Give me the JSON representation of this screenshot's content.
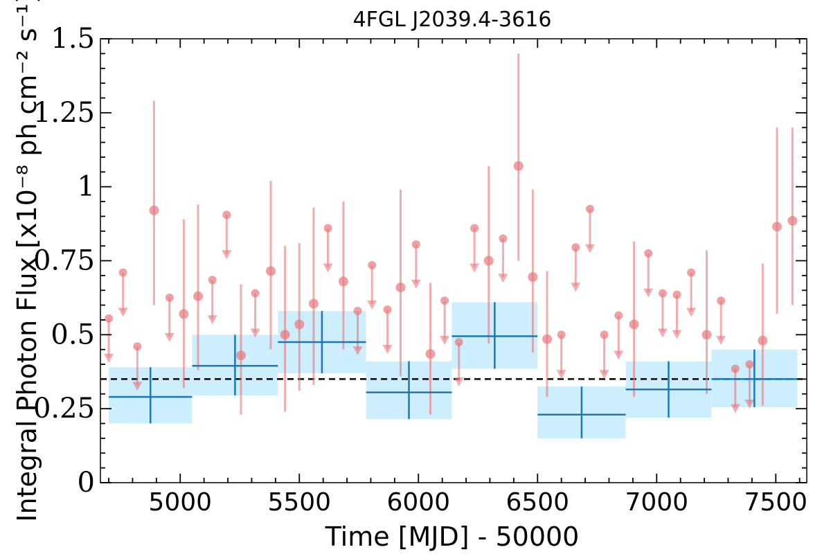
{
  "chart_data": {
    "type": "scatter",
    "title": "4FGL J2039.4-3616",
    "xlabel": "Time [MJD] - 50000",
    "ylabel": "Integral Photon Flux [x10⁻⁸ ph cm⁻² s⁻¹]",
    "xlim": [
      4665,
      7630
    ],
    "ylim": [
      0,
      1.5
    ],
    "xticks": [
      5000,
      5500,
      6000,
      6500,
      7000,
      7500
    ],
    "xtick_labels": [
      "5000",
      "5500",
      "6000",
      "6500",
      "7000",
      "7500"
    ],
    "yticks": [
      0,
      0.25,
      0.5,
      0.75,
      1,
      1.25,
      1.5
    ],
    "ytick_labels": [
      "0",
      "0.25",
      "0.5",
      "0.75",
      "1",
      "1.25",
      "1.5"
    ],
    "grid": false,
    "average_flux": 0.35,
    "colors": {
      "detection": "#e8777a",
      "upper_limit": "#e8777a",
      "long_bin": "#1f77b4",
      "long_bin_band": "#cdeefc",
      "average_line": "#000000"
    },
    "series": [
      {
        "kind": "detections",
        "points": [
          {
            "x": 4890,
            "y": 0.92,
            "ylow": 0.6,
            "yhigh": 1.29
          },
          {
            "x": 5015,
            "y": 0.57,
            "ylow": 0.32,
            "yhigh": 0.89
          },
          {
            "x": 5075,
            "y": 0.63,
            "ylow": 0.38,
            "yhigh": 0.94
          },
          {
            "x": 5255,
            "y": 0.43,
            "ylow": 0.23,
            "yhigh": 0.67
          },
          {
            "x": 5380,
            "y": 0.715,
            "ylow": 0.45,
            "yhigh": 1.02
          },
          {
            "x": 5440,
            "y": 0.5,
            "ylow": 0.24,
            "yhigh": 0.8
          },
          {
            "x": 5500,
            "y": 0.535,
            "ylow": 0.31,
            "yhigh": 0.81
          },
          {
            "x": 5560,
            "y": 0.605,
            "ylow": 0.33,
            "yhigh": 0.93
          },
          {
            "x": 5685,
            "y": 0.68,
            "ylow": 0.45,
            "yhigh": 0.95
          },
          {
            "x": 5925,
            "y": 0.66,
            "ylow": 0.36,
            "yhigh": 0.99
          },
          {
            "x": 6050,
            "y": 0.435,
            "ylow": 0.23,
            "yhigh": 0.675
          },
          {
            "x": 6295,
            "y": 0.75,
            "ylow": 0.47,
            "yhigh": 1.07
          },
          {
            "x": 6420,
            "y": 1.07,
            "ylow": 0.75,
            "yhigh": 1.45
          },
          {
            "x": 6480,
            "y": 0.695,
            "ylow": 0.44,
            "yhigh": 0.99
          },
          {
            "x": 6540,
            "y": 0.485,
            "ylow": 0.29,
            "yhigh": 0.715
          },
          {
            "x": 6905,
            "y": 0.535,
            "ylow": 0.29,
            "yhigh": 0.815
          },
          {
            "x": 7210,
            "y": 0.5,
            "ylow": 0.3,
            "yhigh": 0.785
          },
          {
            "x": 7445,
            "y": 0.48,
            "ylow": 0.26,
            "yhigh": 0.74
          },
          {
            "x": 7505,
            "y": 0.865,
            "ylow": 0.57,
            "yhigh": 1.2
          },
          {
            "x": 7570,
            "y": 0.885,
            "ylow": 0.6,
            "yhigh": 1.2
          }
        ]
      },
      {
        "kind": "upper_limits",
        "points": [
          {
            "x": 4700,
            "y": 0.555
          },
          {
            "x": 4760,
            "y": 0.71
          },
          {
            "x": 4820,
            "y": 0.46
          },
          {
            "x": 4955,
            "y": 0.625
          },
          {
            "x": 5135,
            "y": 0.685
          },
          {
            "x": 5195,
            "y": 0.905
          },
          {
            "x": 5315,
            "y": 0.64
          },
          {
            "x": 5620,
            "y": 0.86
          },
          {
            "x": 5745,
            "y": 0.58
          },
          {
            "x": 5805,
            "y": 0.735
          },
          {
            "x": 5870,
            "y": 0.585
          },
          {
            "x": 5990,
            "y": 0.805
          },
          {
            "x": 6110,
            "y": 0.615
          },
          {
            "x": 6170,
            "y": 0.475
          },
          {
            "x": 6235,
            "y": 0.86
          },
          {
            "x": 6355,
            "y": 0.825
          },
          {
            "x": 6600,
            "y": 0.5
          },
          {
            "x": 6660,
            "y": 0.795
          },
          {
            "x": 6720,
            "y": 0.925
          },
          {
            "x": 6780,
            "y": 0.5
          },
          {
            "x": 6840,
            "y": 0.565
          },
          {
            "x": 6965,
            "y": 0.775
          },
          {
            "x": 7025,
            "y": 0.64
          },
          {
            "x": 7085,
            "y": 0.635
          },
          {
            "x": 7145,
            "y": 0.71
          },
          {
            "x": 7270,
            "y": 0.615
          },
          {
            "x": 7330,
            "y": 0.385
          },
          {
            "x": 7390,
            "y": 0.4
          }
        ]
      },
      {
        "kind": "long_bins",
        "bins": [
          {
            "x0": 4700,
            "x1": 5050,
            "y": 0.29,
            "ylow": 0.2,
            "yhigh": 0.39
          },
          {
            "x0": 5050,
            "x1": 5410,
            "y": 0.395,
            "ylow": 0.295,
            "yhigh": 0.5
          },
          {
            "x0": 5410,
            "x1": 5780,
            "y": 0.475,
            "ylow": 0.37,
            "yhigh": 0.58
          },
          {
            "x0": 5780,
            "x1": 6140,
            "y": 0.305,
            "ylow": 0.215,
            "yhigh": 0.41
          },
          {
            "x0": 6140,
            "x1": 6500,
            "y": 0.495,
            "ylow": 0.385,
            "yhigh": 0.61
          },
          {
            "x0": 6500,
            "x1": 6870,
            "y": 0.23,
            "ylow": 0.15,
            "yhigh": 0.325
          },
          {
            "x0": 6870,
            "x1": 7230,
            "y": 0.315,
            "ylow": 0.22,
            "yhigh": 0.41
          },
          {
            "x0": 7230,
            "x1": 7590,
            "y": 0.35,
            "ylow": 0.255,
            "yhigh": 0.45
          }
        ]
      }
    ]
  }
}
